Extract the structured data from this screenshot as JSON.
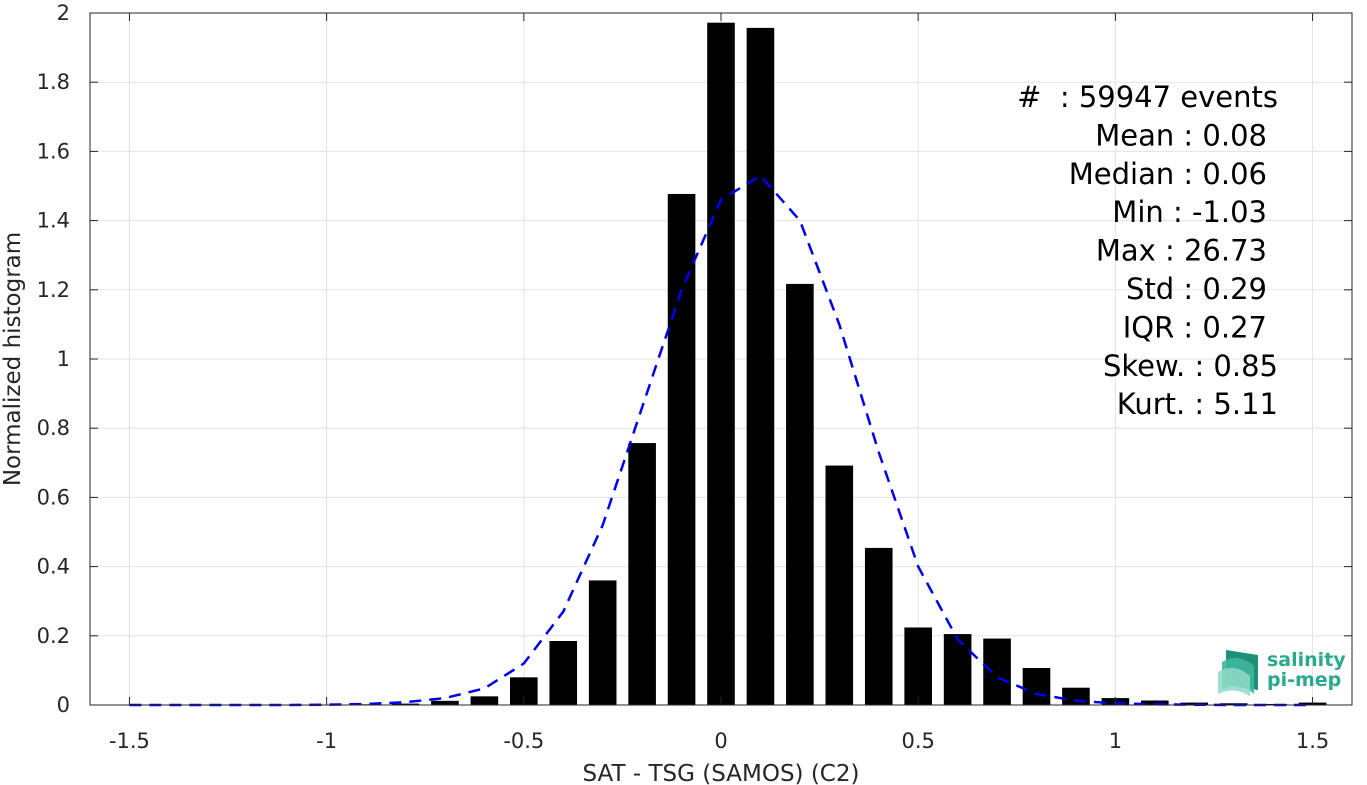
{
  "chart_data": {
    "type": "bar",
    "xlabel": "SAT - TSG (SAMOS) (C2)",
    "ylabel": "Normalized histogram",
    "xlim": [
      -1.6,
      1.6
    ],
    "ylim": [
      0,
      2
    ],
    "xticks": [
      -1.5,
      -1,
      -0.5,
      0,
      0.5,
      1,
      1.5
    ],
    "xtick_labels": [
      "-1.5",
      "-1",
      "-0.5",
      "0",
      "0.5",
      "1",
      "1.5"
    ],
    "yticks": [
      0,
      0.2,
      0.4,
      0.6,
      0.8,
      1,
      1.2,
      1.4,
      1.6,
      1.8,
      2
    ],
    "ytick_labels": [
      "0",
      "0.2",
      "0.4",
      "0.6",
      "0.8",
      "1",
      "1.2",
      "1.4",
      "1.6",
      "1.8",
      "2"
    ],
    "grid": true,
    "bar_color": "#000000",
    "bar_width": 0.07,
    "bars": {
      "x": [
        -1.5,
        -1.4,
        -1.3,
        -1.2,
        -1.1,
        -1.0,
        -0.9,
        -0.8,
        -0.7,
        -0.6,
        -0.5,
        -0.4,
        -0.3,
        -0.2,
        -0.1,
        0.0,
        0.1,
        0.2,
        0.3,
        0.4,
        0.5,
        0.6,
        0.7,
        0.8,
        0.9,
        1.0,
        1.1,
        1.2,
        1.3,
        1.4,
        1.5
      ],
      "values": [
        0,
        0,
        0,
        0,
        0,
        0.001,
        0.002,
        0.004,
        0.012,
        0.025,
        0.08,
        0.185,
        0.36,
        0.757,
        1.477,
        1.972,
        1.957,
        1.217,
        0.692,
        0.454,
        0.224,
        0.205,
        0.192,
        0.107,
        0.05,
        0.02,
        0.013,
        0.007,
        0.005,
        0.003,
        0.007
      ]
    },
    "fit_curve": {
      "style": "dashed",
      "color": "#0000ee",
      "x": [
        -1.5,
        -1.4,
        -1.3,
        -1.2,
        -1.1,
        -1.0,
        -0.9,
        -0.8,
        -0.7,
        -0.6,
        -0.5,
        -0.4,
        -0.3,
        -0.2,
        -0.1,
        0.0,
        0.1,
        0.2,
        0.3,
        0.4,
        0.5,
        0.6,
        0.7,
        0.8,
        0.9,
        1.0,
        1.1,
        1.2,
        1.3,
        1.4,
        1.5
      ],
      "y": [
        0,
        0,
        0,
        0,
        0,
        0.001,
        0.003,
        0.008,
        0.02,
        0.048,
        0.12,
        0.27,
        0.52,
        0.86,
        1.2,
        1.46,
        1.53,
        1.4,
        1.1,
        0.73,
        0.4,
        0.19,
        0.08,
        0.032,
        0.012,
        0.005,
        0.002,
        0.001,
        0,
        0,
        0
      ]
    },
    "stats": [
      "#  : 59947 events",
      "Mean : 0.08",
      "Median : 0.06",
      "Min : -1.03",
      "Max : 26.73",
      "Std : 0.29",
      "IQR : 0.27",
      "Skew. : 0.85",
      "Kurt. : 5.11"
    ]
  },
  "logo": {
    "line1": "salinity",
    "line2": "pi-mep",
    "color": "#2aa98d"
  }
}
